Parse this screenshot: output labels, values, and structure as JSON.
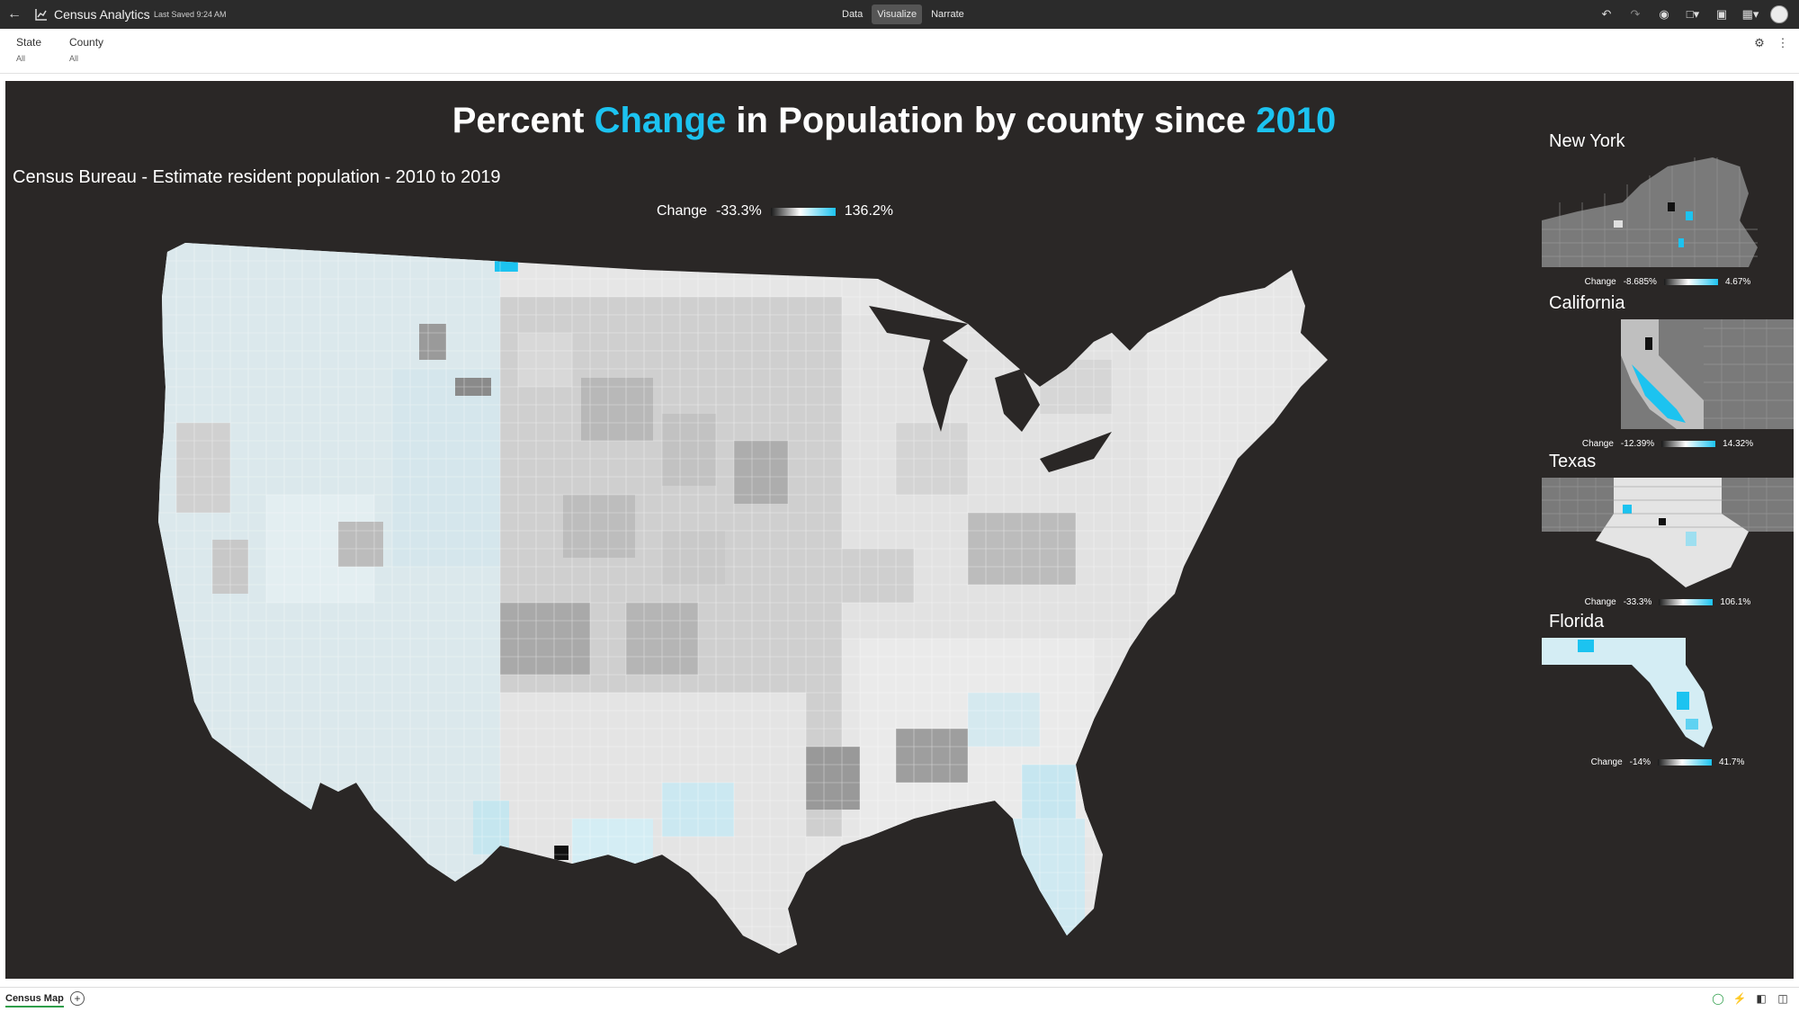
{
  "header": {
    "app_title": "Census Analytics",
    "last_saved": "Last Saved 9:24 AM",
    "tabs": [
      {
        "label": "Data"
      },
      {
        "label": "Visualize"
      },
      {
        "label": "Narrate"
      }
    ],
    "active_tab": "Visualize"
  },
  "filters": [
    {
      "label": "State",
      "value": "All"
    },
    {
      "label": "County",
      "value": "All"
    }
  ],
  "canvas": {
    "title_parts": [
      {
        "text": "Percent ",
        "highlight": false
      },
      {
        "text": "Change",
        "highlight": true
      },
      {
        "text": " in Population by county since ",
        "highlight": false
      },
      {
        "text": "2010",
        "highlight": true
      }
    ],
    "subtitle": "Census Bureau - Estimate resident population - 2010 to 2019",
    "legend": {
      "label": "Change",
      "min": "-33.3%",
      "max": "136.2%"
    },
    "colors": {
      "background": "#2a2726",
      "accent": "#1cc3f0",
      "low": "#1a1a1a",
      "mid": "#ffffff"
    }
  },
  "states": [
    {
      "name": "New York",
      "legend": {
        "label": "Change",
        "min": "-8.685%",
        "max": "4.67%"
      }
    },
    {
      "name": "California",
      "legend": {
        "label": "Change",
        "min": "-12.39%",
        "max": "14.32%"
      }
    },
    {
      "name": "Texas",
      "legend": {
        "label": "Change",
        "min": "-33.3%",
        "max": "106.1%"
      }
    },
    {
      "name": "Florida",
      "legend": {
        "label": "Change",
        "min": "-14%",
        "max": "41.7%"
      }
    }
  ],
  "footer": {
    "sheet_tab": "Census Map"
  }
}
